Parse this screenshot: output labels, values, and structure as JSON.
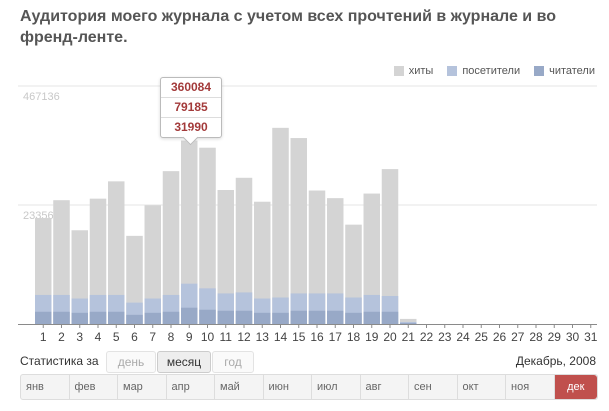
{
  "title": "Аудитория моего журнала с учетом всех прочтений в журнале и во френд-ленте.",
  "legend": [
    {
      "label": "хиты",
      "color": "#d4d4d4"
    },
    {
      "label": "посетители",
      "color": "#b5c3dc"
    },
    {
      "label": "читатели",
      "color": "#98a9c7"
    }
  ],
  "tooltip": {
    "hits": "360084",
    "visitors": "79185",
    "readers": "31990"
  },
  "stats": {
    "label": "Статистика за",
    "periods": [
      "день",
      "месяц",
      "год"
    ],
    "active_period": "месяц",
    "date": "Декабрь, 2008"
  },
  "months": [
    "янв",
    "фев",
    "мар",
    "апр",
    "май",
    "июн",
    "июл",
    "авг",
    "сен",
    "окт",
    "ноя",
    "дек"
  ],
  "selected_month": "дек",
  "chart_data": {
    "type": "bar",
    "stacked": false,
    "categories": [
      "1",
      "2",
      "3",
      "4",
      "5",
      "6",
      "7",
      "8",
      "9",
      "10",
      "11",
      "12",
      "13",
      "14",
      "15",
      "16",
      "17",
      "18",
      "19",
      "20",
      "21",
      "22",
      "23",
      "24",
      "25",
      "26",
      "27",
      "28",
      "29",
      "30",
      "31"
    ],
    "y_ticks": [
      233568,
      467136
    ],
    "ylim": [
      0,
      467136
    ],
    "series": [
      {
        "name": "хиты",
        "color": "#d4d4d4",
        "values": [
          208000,
          243000,
          184000,
          246000,
          280000,
          173000,
          233000,
          300000,
          360084,
          346000,
          263000,
          287000,
          240000,
          385000,
          365000,
          262000,
          247000,
          195000,
          256000,
          304000,
          10000,
          0,
          0,
          0,
          0,
          0,
          0,
          0,
          0,
          0,
          0
        ]
      },
      {
        "name": "посетители",
        "color": "#b5c3dc",
        "values": [
          57000,
          57000,
          50000,
          57000,
          57000,
          42000,
          50000,
          57000,
          79185,
          70000,
          60000,
          62000,
          50000,
          52000,
          60000,
          60000,
          60000,
          52000,
          57000,
          55000,
          4000,
          0,
          0,
          0,
          0,
          0,
          0,
          0,
          0,
          0,
          0
        ]
      },
      {
        "name": "читатели",
        "color": "#98a9c7",
        "values": [
          24000,
          24000,
          22000,
          24000,
          24000,
          18000,
          22000,
          24000,
          31990,
          28000,
          26000,
          26000,
          22000,
          22000,
          26000,
          26000,
          26000,
          22000,
          24000,
          24000,
          2000,
          0,
          0,
          0,
          0,
          0,
          0,
          0,
          0,
          0,
          0
        ]
      }
    ],
    "grid": true,
    "legend_position": "top-right"
  }
}
